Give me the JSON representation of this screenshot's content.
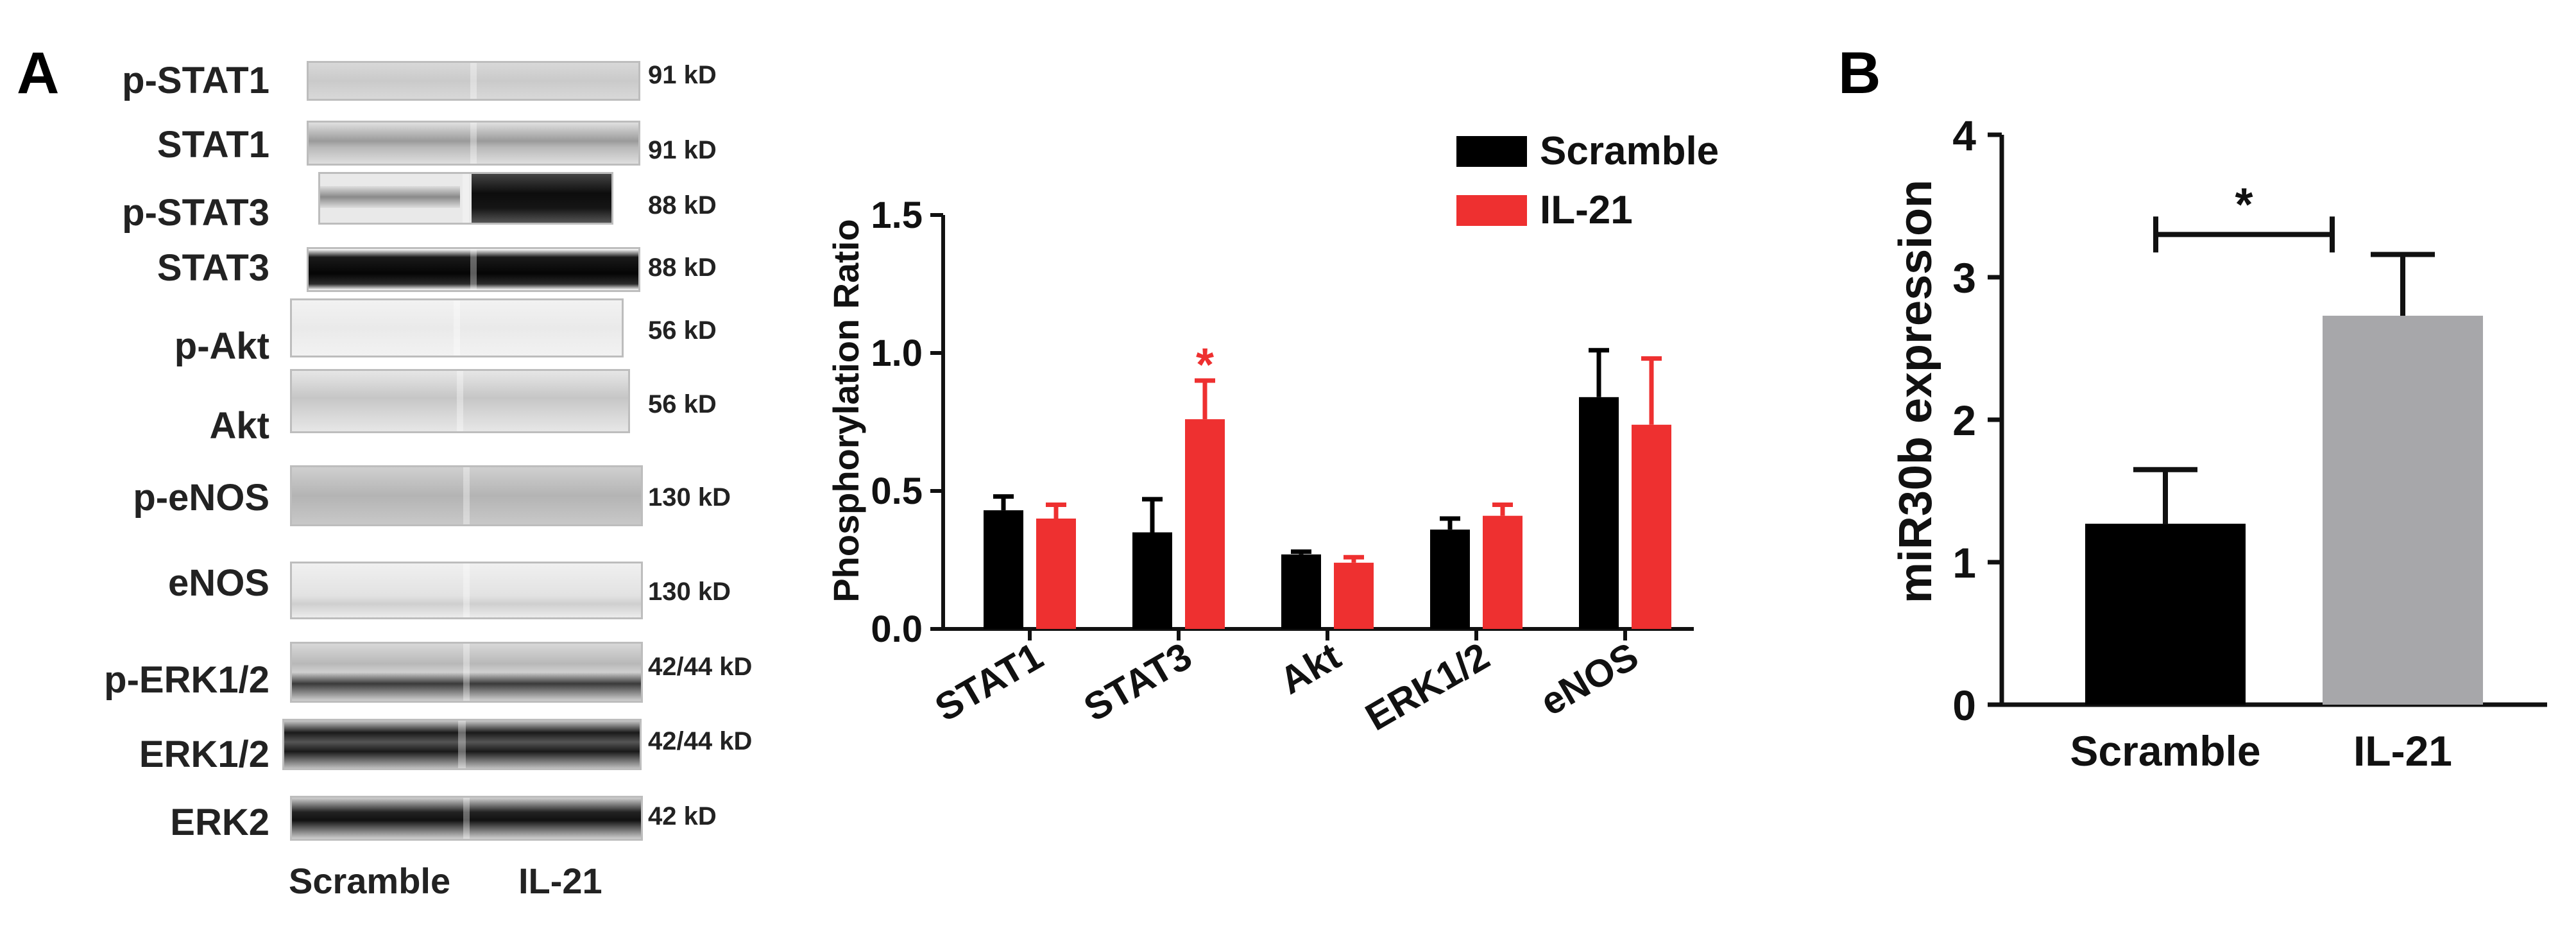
{
  "panel_a": {
    "letter": "A",
    "blots": [
      {
        "name": "p-STAT1",
        "size": "91 kD"
      },
      {
        "name": "STAT1",
        "size": "91 kD"
      },
      {
        "name": "p-STAT3",
        "size": "88 kD"
      },
      {
        "name": "STAT3",
        "size": "88 kD"
      },
      {
        "name": "p-Akt",
        "size": "56 kD"
      },
      {
        "name": "Akt",
        "size": "56 kD"
      },
      {
        "name": "p-eNOS",
        "size": "130 kD"
      },
      {
        "name": "eNOS",
        "size": "130 kD"
      },
      {
        "name": "p-ERK1/2",
        "size": "42/44 kD"
      },
      {
        "name": "ERK1/2",
        "size": "42/44 kD"
      },
      {
        "name": "ERK2",
        "size": "42 kD"
      }
    ],
    "lanes": [
      "Scramble",
      "IL-21"
    ]
  },
  "panel_b": {
    "letter": "B"
  },
  "chart_data": [
    {
      "type": "bar",
      "ylabel": "Phosphorylation Ratio",
      "xlabel": "",
      "categories": [
        "STAT1",
        "STAT3",
        "Akt",
        "ERK1/2",
        "eNOS"
      ],
      "ylim": [
        0,
        1.5
      ],
      "yticks": [
        "0.0",
        "0.5",
        "1.0",
        "1.5"
      ],
      "legend": "top-right",
      "significance": {
        "category": "STAT3",
        "mark": "*",
        "color": "#ee3030"
      },
      "series": [
        {
          "name": "Scramble",
          "color": "#000000",
          "values": [
            0.43,
            0.35,
            0.27,
            0.36,
            0.84
          ],
          "errors": [
            0.05,
            0.12,
            0.01,
            0.04,
            0.17
          ]
        },
        {
          "name": "IL-21",
          "color": "#ee3030",
          "values": [
            0.4,
            0.76,
            0.24,
            0.41,
            0.74
          ],
          "errors": [
            0.05,
            0.14,
            0.02,
            0.04,
            0.24
          ]
        }
      ]
    },
    {
      "type": "bar",
      "ylabel": "miR30b expression",
      "xlabel": "",
      "categories": [
        "Scramble",
        "IL-21"
      ],
      "colors": [
        "#000000",
        "#a7a7aa"
      ],
      "values": [
        1.27,
        2.73
      ],
      "errors": [
        0.38,
        0.43
      ],
      "ylim": [
        0,
        4
      ],
      "yticks": [
        "0",
        "1",
        "2",
        "3",
        "4"
      ],
      "significance": {
        "mark": "*",
        "between": [
          "Scramble",
          "IL-21"
        ]
      }
    }
  ]
}
